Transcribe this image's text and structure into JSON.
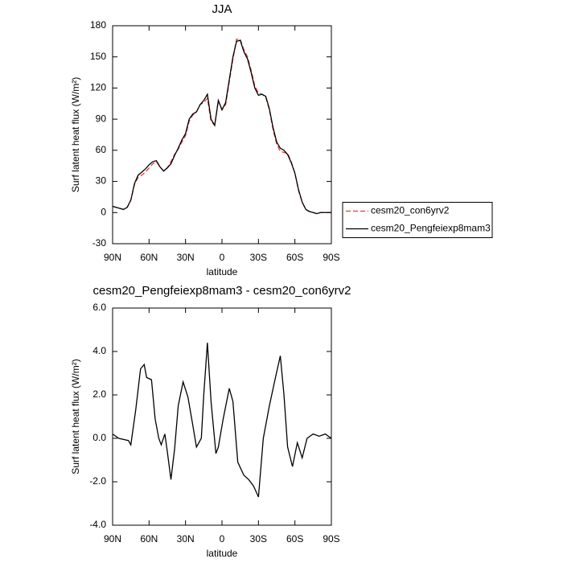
{
  "chart_data": [
    {
      "type": "line",
      "title": "JJA",
      "xlabel": "latitude",
      "ylabel": "Surf latent heat flux (W/m²)",
      "xlim": [
        90,
        -90
      ],
      "xticks": [
        {
          "value": 90,
          "label": "90N"
        },
        {
          "value": 60,
          "label": "60N"
        },
        {
          "value": 30,
          "label": "30N"
        },
        0,
        {
          "value": -30,
          "label": "30S"
        },
        {
          "value": -60,
          "label": "60S"
        },
        {
          "value": -90,
          "label": "90S"
        }
      ],
      "ylim": [
        -30,
        180
      ],
      "yticks": [
        -30,
        0,
        30,
        60,
        90,
        120,
        150,
        180
      ],
      "legend": "right",
      "x": [
        90,
        87,
        84,
        81,
        78,
        75,
        72,
        69,
        66,
        63,
        60,
        57,
        54,
        51,
        48,
        45,
        42,
        39,
        36,
        33,
        30,
        27,
        24,
        21,
        18,
        15,
        12,
        9,
        6,
        3,
        0,
        -3,
        -6,
        -9,
        -12,
        -15,
        -18,
        -21,
        -24,
        -27,
        -30,
        -33,
        -36,
        -39,
        -42,
        -45,
        -48,
        -51,
        -54,
        -57,
        -60,
        -63,
        -66,
        -69,
        -72,
        -75,
        -78,
        -81,
        -84,
        -87,
        -90
      ],
      "series": [
        {
          "name": "cesm20_con6yrv2",
          "color": "#e8393a",
          "line_style": "dashed",
          "values": [
            6,
            5,
            4,
            3,
            5,
            12,
            27,
            34,
            36,
            39,
            43,
            47,
            49,
            44,
            40,
            43,
            49,
            56,
            61,
            68,
            74,
            88,
            94,
            97,
            104,
            106,
            110,
            88,
            84,
            108,
            99,
            104,
            126,
            148,
            167,
            167,
            157,
            150,
            137,
            122,
            115,
            114,
            111,
            99,
            80,
            66,
            59,
            58,
            57,
            49,
            38,
            21,
            10,
            3,
            1,
            0,
            -1,
            0,
            0,
            0,
            0
          ]
        },
        {
          "name": "cesm20_Pengfeiexp8mam3",
          "color": "#000000",
          "line_style": "solid",
          "values": [
            6,
            5,
            4,
            3,
            5,
            12,
            28,
            36,
            39,
            42,
            46,
            49,
            50,
            44,
            40,
            43,
            47,
            55,
            62,
            70,
            76,
            90,
            95,
            97,
            104,
            108,
            114,
            90,
            84,
            108,
            99,
            106,
            128,
            150,
            165,
            166,
            155,
            148,
            135,
            120,
            113,
            114,
            112,
            100,
            82,
            68,
            62,
            60,
            56,
            48,
            38,
            22,
            10,
            3,
            1,
            0,
            -1,
            0,
            0,
            0,
            0
          ]
        }
      ]
    },
    {
      "type": "line",
      "title": "cesm20_Pengfeiexp8mam3 - cesm20_con6yrv2",
      "xlabel": "latitude",
      "ylabel": "Surf latent heat flux (W/m²)",
      "xlim": [
        90,
        -90
      ],
      "xticks": [
        {
          "value": 90,
          "label": "90N"
        },
        {
          "value": 60,
          "label": "60N"
        },
        {
          "value": 30,
          "label": "30N"
        },
        0,
        {
          "value": -30,
          "label": "30S"
        },
        {
          "value": -60,
          "label": "60S"
        },
        {
          "value": -90,
          "label": "90S"
        }
      ],
      "ylim": [
        -4,
        6
      ],
      "yticks": [
        {
          "value": -4,
          "label": "-4.0"
        },
        {
          "value": -2,
          "label": "-2.0"
        },
        {
          "value": 0,
          "label": "0.0"
        },
        {
          "value": 2,
          "label": "2.0"
        },
        {
          "value": 4,
          "label": "4.0"
        },
        {
          "value": 6,
          "label": "6.0"
        }
      ],
      "color": "#000000",
      "line_style": "solid",
      "x": [
        90,
        85,
        77,
        75,
        71,
        67,
        64,
        62,
        58,
        55,
        52,
        50,
        47,
        45,
        42,
        39,
        36,
        32,
        28,
        24,
        21,
        17,
        15,
        12,
        9,
        5,
        3,
        -1,
        -6,
        -9,
        -13,
        -18,
        -22,
        -26,
        -30,
        -34,
        -39,
        -44,
        -48,
        -51,
        -54,
        -58,
        -62,
        -66,
        -70,
        -75,
        -80,
        -85,
        -90
      ],
      "values": [
        0.2,
        0,
        -0.1,
        -0.3,
        1.3,
        3.2,
        3.4,
        2.8,
        2.7,
        0.9,
        0,
        -0.3,
        0.2,
        -0.6,
        -1.9,
        -0.5,
        1.5,
        2.6,
        1.9,
        0.6,
        -0.4,
        0,
        2,
        4.4,
        1.7,
        -0.7,
        -0.4,
        0.9,
        2.3,
        1.7,
        -1.1,
        -1.7,
        -1.9,
        -2.2,
        -2.7,
        0,
        1.5,
        2.8,
        3.8,
        2,
        -0.4,
        -1.3,
        -0.2,
        -0.9,
        0,
        0.2,
        0.1,
        0.2,
        0
      ]
    }
  ]
}
